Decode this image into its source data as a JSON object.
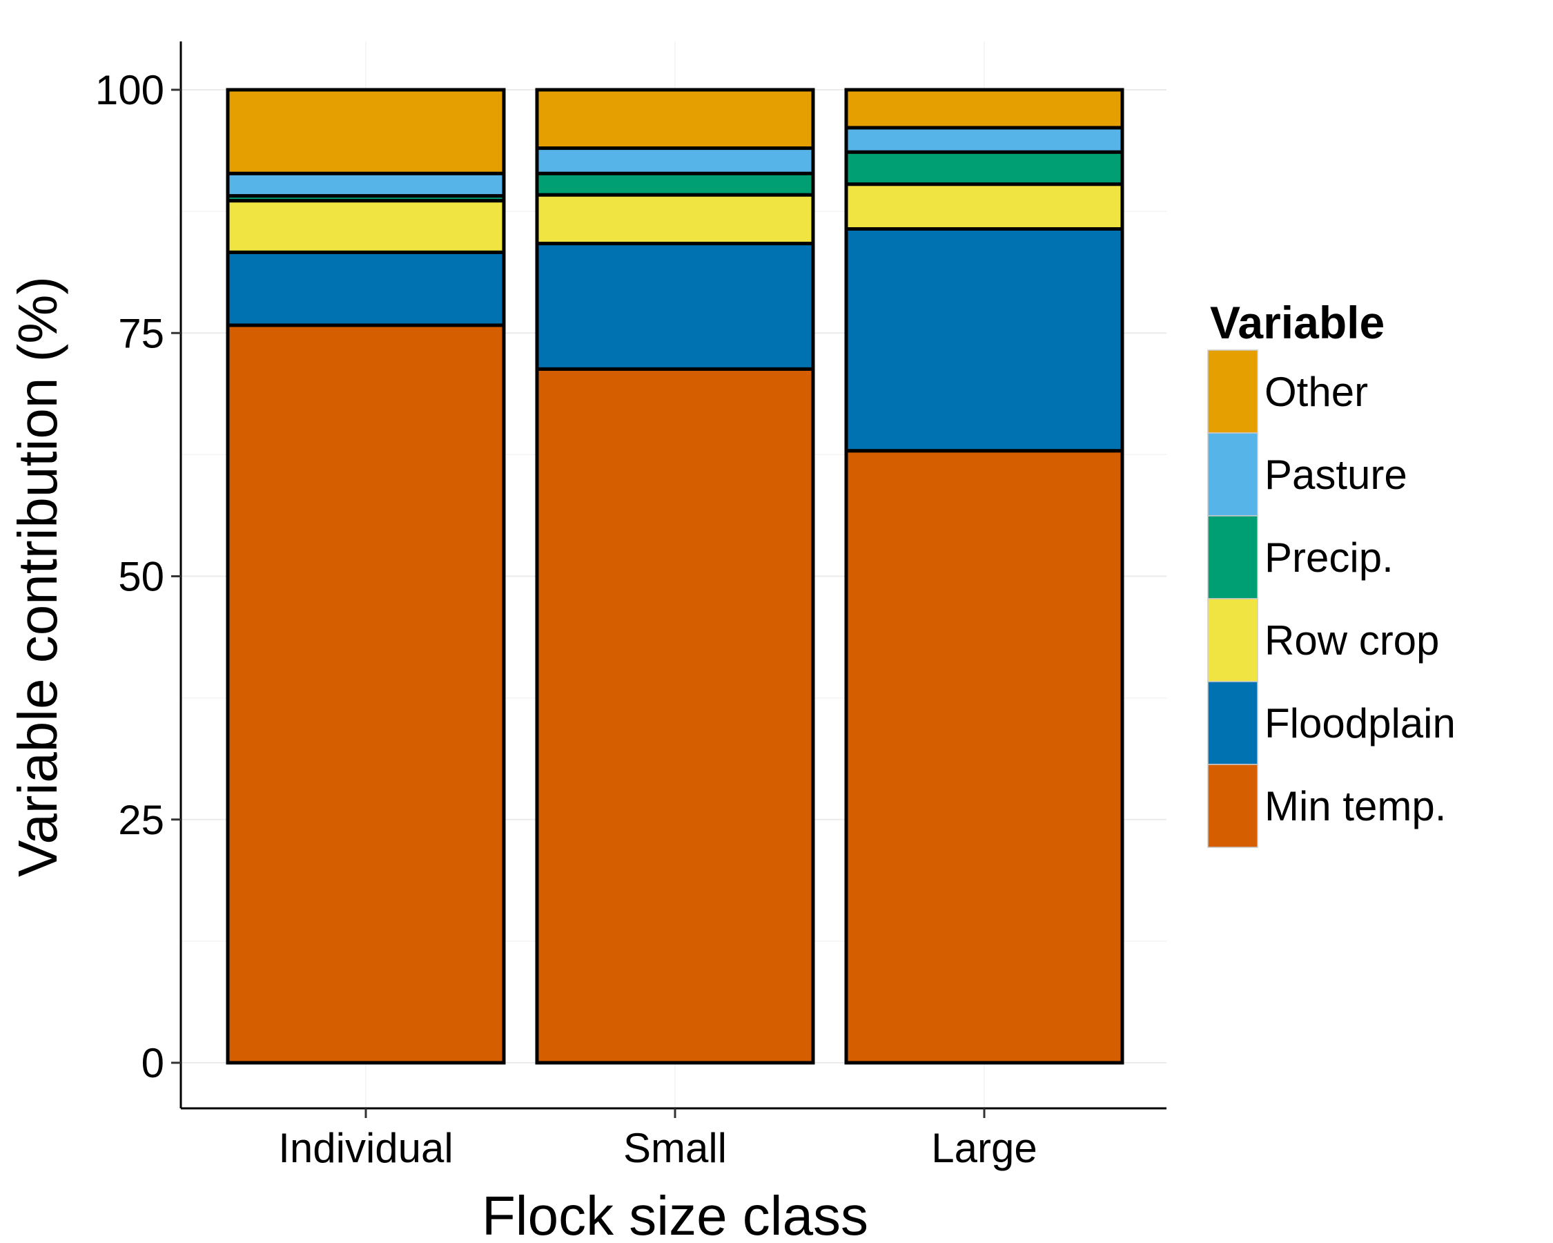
{
  "chart_data": {
    "type": "bar",
    "stacked": true,
    "xlabel": "Flock size class",
    "ylabel": "Variable contribution (%)",
    "categories": [
      "Individual",
      "Small",
      "Large"
    ],
    "ylim": [
      0,
      100
    ],
    "yticks": [
      0,
      25,
      50,
      75,
      100
    ],
    "grid": true,
    "legend": {
      "title": "Variable",
      "position": "right"
    },
    "series": [
      {
        "name": "Min temp.",
        "color": "#D55E00",
        "values": [
          75.8,
          71.3,
          62.9
        ]
      },
      {
        "name": "Floodplain",
        "color": "#0072B2",
        "values": [
          7.5,
          12.9,
          22.8
        ]
      },
      {
        "name": "Row crop",
        "color": "#F0E442",
        "values": [
          5.3,
          5.0,
          4.6
        ]
      },
      {
        "name": "Precip.",
        "color": "#009E73",
        "values": [
          0.5,
          2.2,
          3.3
        ]
      },
      {
        "name": "Pasture",
        "color": "#56B4E9",
        "values": [
          2.3,
          2.6,
          2.5
        ]
      },
      {
        "name": "Other",
        "color": "#E69F00",
        "values": [
          8.6,
          6.0,
          3.9
        ]
      }
    ]
  }
}
